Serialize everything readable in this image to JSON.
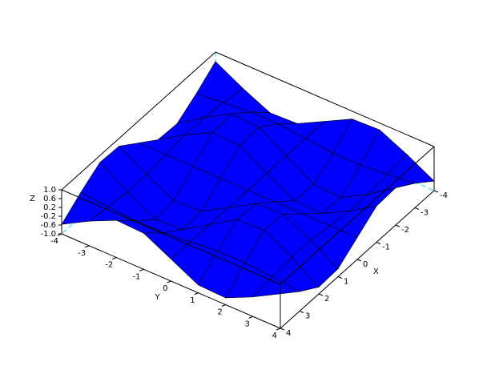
{
  "chart_data": {
    "type": "surface",
    "color": "#0000ff",
    "xlabel": "X",
    "ylabel": "Y",
    "zlabel": "Z",
    "x": [
      -4,
      -3,
      -2,
      -1,
      0,
      1,
      2,
      3,
      4
    ],
    "y": [
      -4,
      -3,
      -2,
      -1,
      0,
      1,
      2,
      3,
      4
    ],
    "z": [
      [
        0.57,
        -0.11,
        -0.69,
        -0.64,
        0,
        0.64,
        0.69,
        0.11,
        -0.57
      ],
      [
        -0.11,
        0.02,
        0.13,
        0.12,
        0,
        -0.12,
        -0.13,
        -0.02,
        0.11
      ],
      [
        -0.69,
        0.13,
        0.83,
        0.76,
        0,
        -0.76,
        -0.83,
        -0.13,
        0.69
      ],
      [
        -0.64,
        0.12,
        0.76,
        0.71,
        0,
        -0.71,
        -0.76,
        -0.12,
        0.64
      ],
      [
        0,
        0,
        0,
        0,
        0,
        0,
        0,
        0,
        0
      ],
      [
        0.64,
        -0.12,
        -0.76,
        -0.71,
        0,
        0.71,
        0.76,
        0.12,
        -0.64
      ],
      [
        0.69,
        -0.13,
        -0.83,
        -0.76,
        0,
        0.76,
        0.83,
        0.13,
        -0.69
      ],
      [
        0.11,
        -0.02,
        -0.13,
        -0.12,
        0,
        0.12,
        0.13,
        0.02,
        -0.11
      ],
      [
        -0.57,
        0.11,
        0.69,
        0.64,
        0,
        -0.64,
        -0.69,
        -0.11,
        0.57
      ]
    ],
    "xlim": [
      -4,
      4
    ],
    "ylim": [
      -4,
      4
    ],
    "zlim": [
      -1,
      1
    ],
    "xticks": [
      -4,
      -3,
      -2,
      -1,
      0,
      1,
      2,
      3,
      4
    ],
    "yticks": [
      -4,
      -3,
      -2,
      -1,
      0,
      1,
      2,
      3,
      4
    ],
    "zticks": [
      {
        "value": -1,
        "label": "-1.0"
      },
      -0.6,
      -0.2,
      0.2,
      0.6,
      {
        "value": 1,
        "label": "1.0"
      }
    ]
  }
}
